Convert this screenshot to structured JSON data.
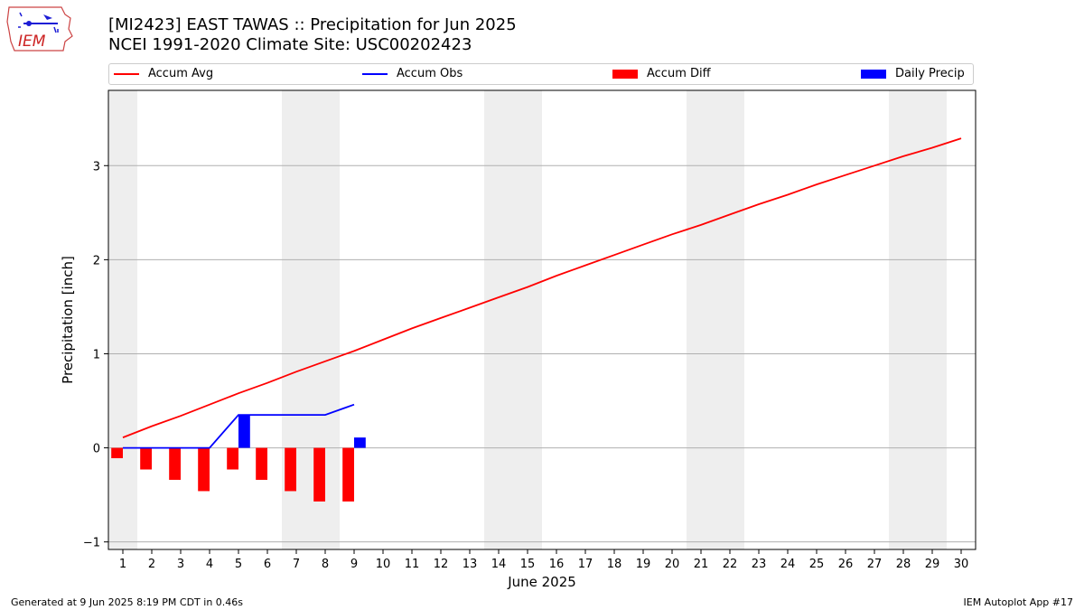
{
  "header": {
    "title_line1": "[MI2423] EAST TAWAS :: Precipitation for Jun 2025",
    "title_line2": "NCEI 1991-2020 Climate Site: USC00202423",
    "logo_text": "IEM"
  },
  "legend": {
    "accum_avg": "Accum Avg",
    "accum_obs": "Accum Obs",
    "accum_diff": "Accum Diff",
    "daily_precip": "Daily Precip"
  },
  "footer": {
    "left": "Generated at 9 Jun 2025 8:19 PM CDT in 0.46s",
    "right": "IEM Autoplot App #17"
  },
  "colors": {
    "accum_avg": "#ff0000",
    "accum_obs": "#0000ff",
    "accum_diff": "#ff0000",
    "daily_precip": "#0000ff",
    "weekend_shade": "#eeeeee",
    "grid": "#b0b0b0"
  },
  "chart_data": {
    "type": "bar",
    "title": "[MI2423] EAST TAWAS :: Precipitation for Jun 2025",
    "xlabel": "June 2025",
    "ylabel": "Precipitation [inch]",
    "xlim": [
      0.5,
      30.5
    ],
    "ylim": [
      -1.08,
      3.8
    ],
    "yticks": [
      -1,
      0,
      1,
      2,
      3
    ],
    "grid": "horizontal",
    "legend_placement": "top, above plot",
    "days": [
      1,
      2,
      3,
      4,
      5,
      6,
      7,
      8,
      9,
      10,
      11,
      12,
      13,
      14,
      15,
      16,
      17,
      18,
      19,
      20,
      21,
      22,
      23,
      24,
      25,
      26,
      27,
      28,
      29,
      30
    ],
    "shaded_day_ranges": [
      [
        0.5,
        1.5
      ],
      [
        6.5,
        8.5
      ],
      [
        13.5,
        15.5
      ],
      [
        20.5,
        22.5
      ],
      [
        27.5,
        29.5
      ]
    ],
    "series": [
      {
        "name": "Accum Avg",
        "type": "line",
        "x": [
          1,
          2,
          3,
          4,
          5,
          6,
          7,
          8,
          9,
          10,
          11,
          12,
          13,
          14,
          15,
          16,
          17,
          18,
          19,
          20,
          21,
          22,
          23,
          24,
          25,
          26,
          27,
          28,
          29,
          30
        ],
        "values": [
          0.11,
          0.23,
          0.34,
          0.46,
          0.58,
          0.69,
          0.81,
          0.92,
          1.03,
          1.15,
          1.27,
          1.38,
          1.49,
          1.6,
          1.71,
          1.83,
          1.94,
          2.05,
          2.16,
          2.27,
          2.37,
          2.48,
          2.59,
          2.69,
          2.8,
          2.9,
          3.0,
          3.1,
          3.19,
          3.29
        ]
      },
      {
        "name": "Accum Obs",
        "type": "line",
        "x": [
          1,
          2,
          3,
          4,
          5,
          6,
          7,
          8,
          9
        ],
        "values": [
          0.0,
          0.0,
          0.0,
          0.0,
          0.35,
          0.35,
          0.35,
          0.35,
          0.46
        ]
      },
      {
        "name": "Accum Diff",
        "type": "bar",
        "x": [
          1,
          2,
          3,
          4,
          5,
          6,
          7,
          8,
          9
        ],
        "values": [
          -0.11,
          -0.23,
          -0.34,
          -0.46,
          -0.23,
          -0.34,
          -0.46,
          -0.57,
          -0.57
        ]
      },
      {
        "name": "Daily Precip",
        "type": "bar",
        "x": [
          5,
          9
        ],
        "values": [
          0.35,
          0.11
        ]
      }
    ]
  }
}
